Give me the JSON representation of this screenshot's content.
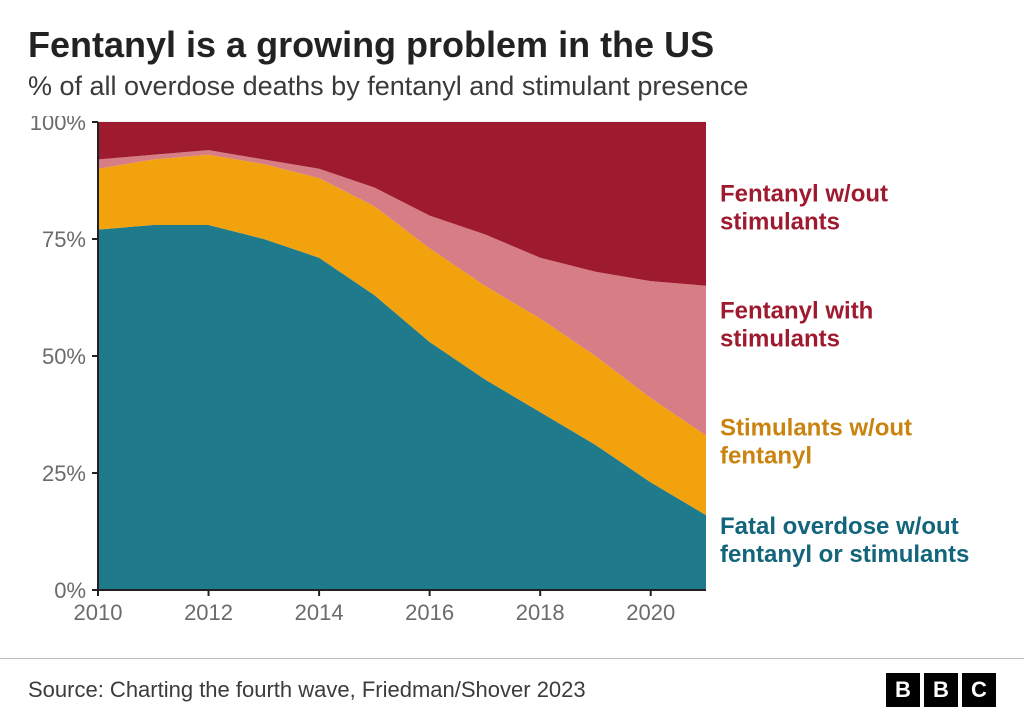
{
  "title": "Fentanyl is a growing problem in the US",
  "subtitle": "% of all overdose deaths by fentanyl and stimulant presence",
  "source": "Source: Charting the fourth wave, Friedman/Shover 2023",
  "logo_letters": [
    "B",
    "B",
    "C"
  ],
  "chart": {
    "type": "area-stacked-100",
    "background_color": "#ffffff",
    "plot_background": "#ffffff",
    "axis_color": "#222222",
    "grid_color": "#dcdcdc",
    "axis_label_color": "#6b6b6b",
    "axis_label_fontsize": 22,
    "ylim": [
      0,
      100
    ],
    "yticks": [
      0,
      25,
      50,
      75,
      100
    ],
    "ytick_labels": [
      "0%",
      "25%",
      "50%",
      "75%",
      "100%"
    ],
    "xlim": [
      2010,
      2021
    ],
    "xticks": [
      2010,
      2012,
      2014,
      2016,
      2018,
      2020
    ],
    "xtick_labels": [
      "2010",
      "2012",
      "2014",
      "2016",
      "2018",
      "2020"
    ],
    "years": [
      2010,
      2011,
      2012,
      2013,
      2014,
      2015,
      2016,
      2017,
      2018,
      2019,
      2020,
      2021
    ],
    "series": [
      {
        "key": "no_fentanyl_no_stim",
        "label_lines": [
          "Fatal overdose w/out",
          "fentanyl or stimulants"
        ],
        "color": "#1f7a8c",
        "label_color": "#12657a",
        "values": [
          77,
          78,
          78,
          75,
          71,
          63,
          53,
          45,
          38,
          31,
          23,
          16
        ]
      },
      {
        "key": "stim_no_fentanyl",
        "label_lines": [
          "Stimulants w/out",
          "fentanyl"
        ],
        "color": "#f2a20c",
        "label_color": "#c9830f",
        "values": [
          13,
          14,
          15,
          16,
          17,
          19,
          20,
          20,
          20,
          19,
          18,
          17
        ]
      },
      {
        "key": "fentanyl_with_stim",
        "label_lines": [
          "Fentanyl with",
          "stimulants"
        ],
        "color": "#d77d86",
        "label_color": "#9e1b2f",
        "values": [
          2,
          1,
          1,
          1,
          2,
          4,
          7,
          11,
          13,
          18,
          25,
          32
        ]
      },
      {
        "key": "fentanyl_no_stim",
        "label_lines": [
          "Fentanyl w/out",
          "stimulants"
        ],
        "color": "#9e1b2f",
        "label_color": "#9e1b2f",
        "values": [
          8,
          7,
          6,
          8,
          10,
          14,
          20,
          24,
          29,
          32,
          34,
          35
        ]
      }
    ],
    "legend": {
      "fontsize": 24,
      "fontweight": 700,
      "positions": [
        {
          "key": "fentanyl_no_stim",
          "y": 17
        },
        {
          "key": "fentanyl_with_stim",
          "y": 42
        },
        {
          "key": "stim_no_fentanyl",
          "y": 67
        },
        {
          "key": "no_fentanyl_no_stim",
          "y": 88
        }
      ]
    }
  }
}
